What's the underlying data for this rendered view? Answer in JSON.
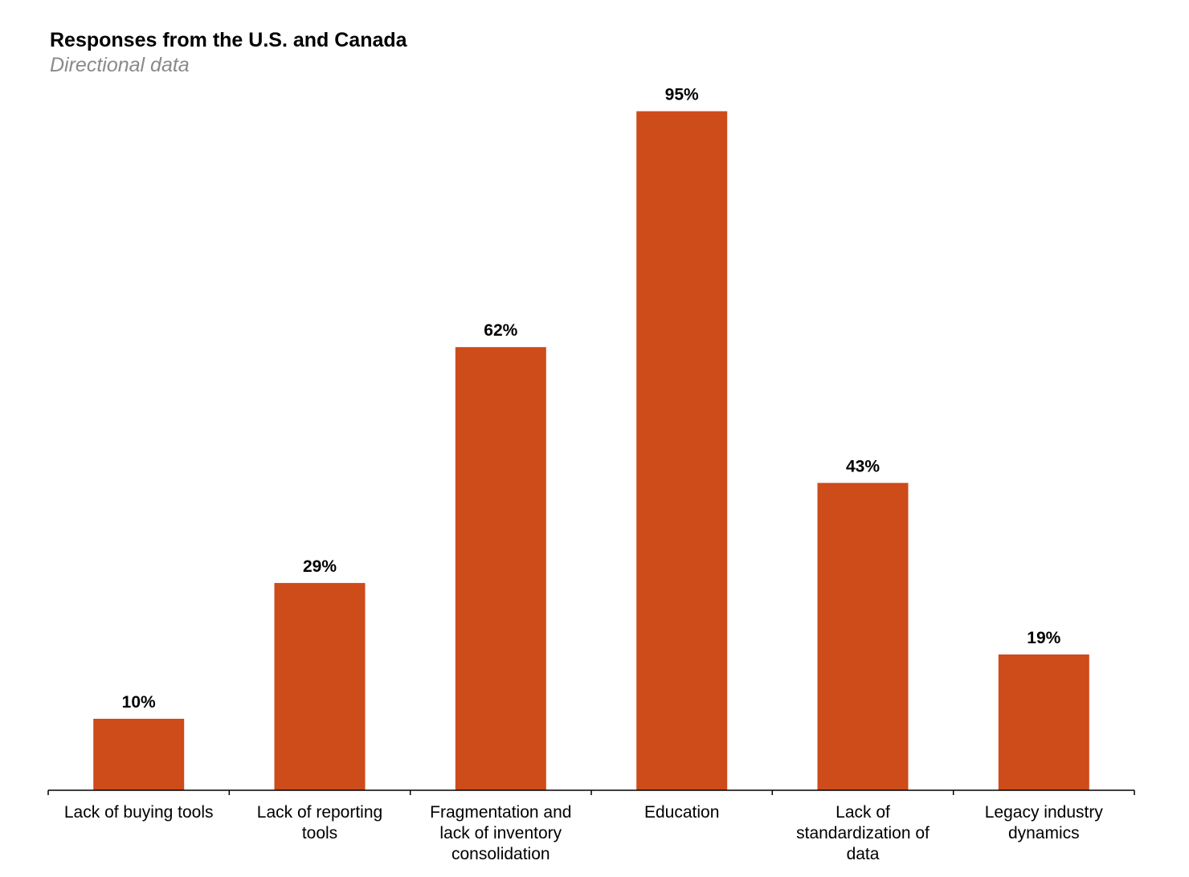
{
  "chart_data": {
    "type": "bar",
    "title": "Responses from the U.S. and Canada",
    "subtitle": "Directional data",
    "categories": [
      [
        "Lack of buying tools"
      ],
      [
        "Lack of reporting",
        "tools"
      ],
      [
        "Fragmentation and",
        "lack of inventory",
        "consolidation"
      ],
      [
        "Education"
      ],
      [
        "Lack of",
        "standardization of",
        "data"
      ],
      [
        "Legacy industry",
        "dynamics"
      ]
    ],
    "values": [
      10,
      29,
      62,
      95,
      43,
      19
    ],
    "data_labels": [
      "10%",
      "29%",
      "62%",
      "95%",
      "43%",
      "19%"
    ],
    "ylim": [
      0,
      100
    ],
    "grid": false,
    "legend": "none",
    "bar_color": "#CE4B1A",
    "axis_color": "#000000"
  }
}
